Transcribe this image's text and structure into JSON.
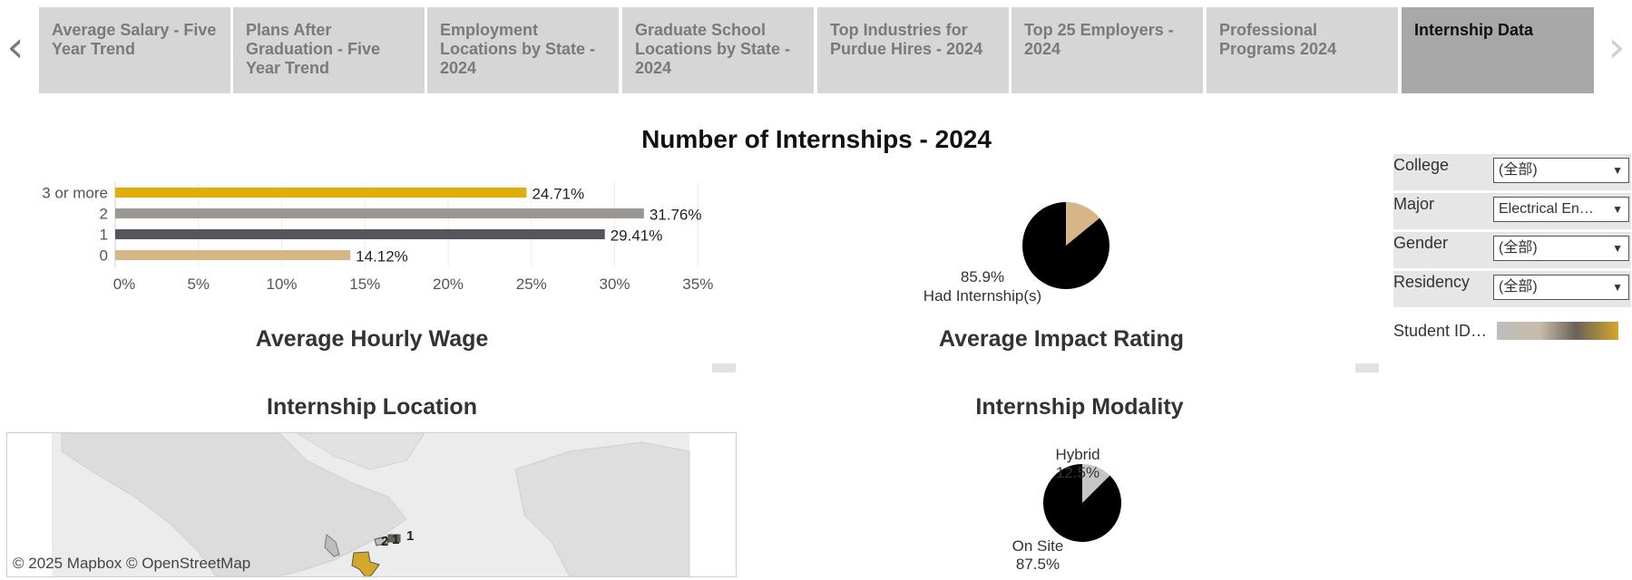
{
  "tabs": [
    {
      "label": "Average Salary - Five\nYear Trend",
      "active": false
    },
    {
      "label": "Plans After\nGraduation - Five\nYear  Trend",
      "active": false
    },
    {
      "label": "Employment\nLocations by State -\n2024",
      "active": false
    },
    {
      "label": "Graduate School\nLocations by State -\n2024",
      "active": false
    },
    {
      "label": "Top Industries for\nPurdue Hires - 2024",
      "active": false
    },
    {
      "label": "Top 25 Employers -\n2024",
      "active": false
    },
    {
      "label": "Professional\nPrograms 2024",
      "active": false
    },
    {
      "label": "Internship Data",
      "active": true
    }
  ],
  "nav": {
    "prev": "‹",
    "next": "›"
  },
  "main_title": "Number of Internships - 2024",
  "sections": {
    "wage": "Average Hourly Wage",
    "impact": "Average Impact Rating",
    "location": "Internship Location",
    "modality": "Internship Modality"
  },
  "filters": [
    {
      "label": "College",
      "value": "(全部)"
    },
    {
      "label": "Major",
      "value": "Electrical En…"
    },
    {
      "label": "Gender",
      "value": "(全部)"
    },
    {
      "label": "Residency",
      "value": "(全部)"
    }
  ],
  "legend": {
    "label": "Student ID…",
    "colors": [
      "#bdbdbd",
      "#c9bda8",
      "#6a6258",
      "#d4a62a"
    ]
  },
  "map": {
    "credit": "© 2025 Mapbox  © OpenStreetMap",
    "counts": [
      {
        "label": "2",
        "lon": -84,
        "lat": 36
      },
      {
        "label": "1",
        "lon": -81,
        "lat": 37
      },
      {
        "label": "1",
        "lon": -74,
        "lat": 40
      }
    ]
  },
  "chart_data": [
    {
      "type": "bar",
      "orientation": "horizontal",
      "categories": [
        "3 or more",
        "2",
        "1",
        "0"
      ],
      "values": [
        24.71,
        31.76,
        29.41,
        14.12
      ],
      "value_labels": [
        "24.71%",
        "31.76%",
        "29.41%",
        "14.12%"
      ],
      "colors": [
        "#e0ae08",
        "#9a9691",
        "#55565c",
        "#d6b586"
      ],
      "xlim": [
        0,
        37
      ],
      "xticks": [
        0,
        5,
        10,
        15,
        20,
        25,
        30,
        35
      ],
      "xtick_labels": [
        "0%",
        "5%",
        "10%",
        "15%",
        "20%",
        "25%",
        "30%",
        "35%"
      ],
      "grid": true
    },
    {
      "type": "pie",
      "slices": [
        {
          "name": "Had Internship(s)",
          "value": 85.9,
          "label": "85.9%",
          "color": "#000000"
        },
        {
          "name": "",
          "value": 14.1,
          "color": "#d6b586"
        }
      ]
    },
    {
      "type": "pie",
      "slices": [
        {
          "name": "On Site",
          "value": 87.5,
          "label": "87.5%",
          "color": "#000000"
        },
        {
          "name": "Hybrid",
          "value": 12.5,
          "label": "12.5%",
          "color": "#c8c6c4"
        }
      ]
    }
  ]
}
